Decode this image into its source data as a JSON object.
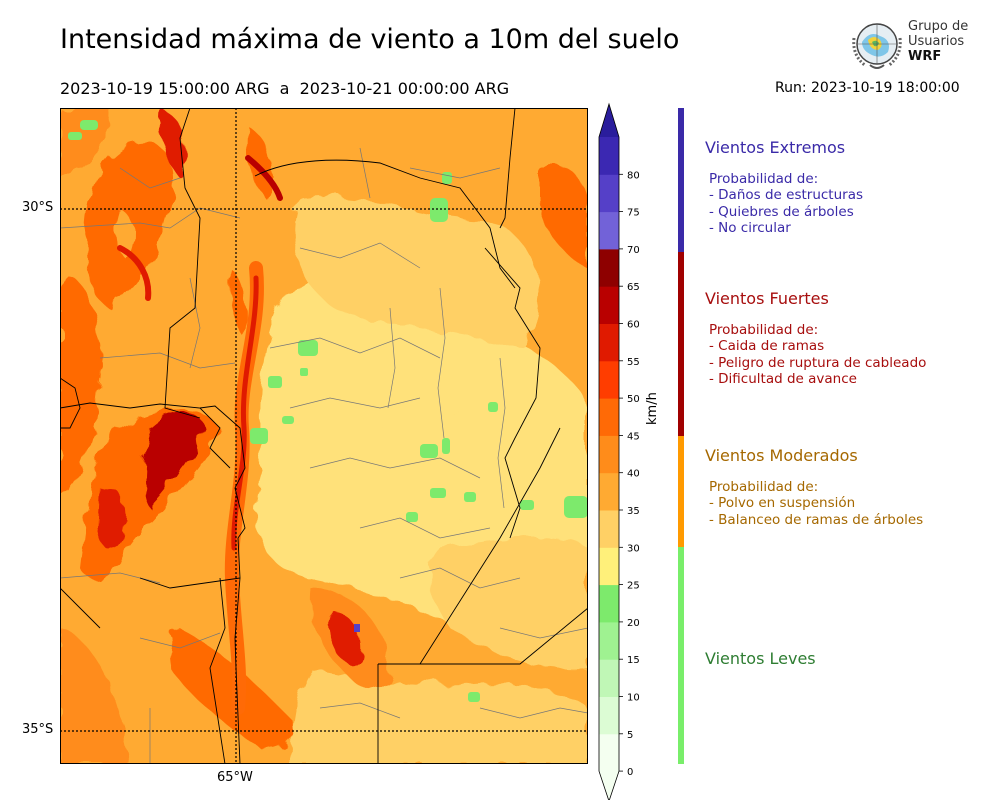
{
  "title": "Intensidad máxima de viento a 10m del suelo",
  "subtitle": "2023-10-19 15:00:00 ARG  a  2023-10-21 00:00:00 ARG",
  "run": "Run: 2023-10-19 18:00:00",
  "logo": {
    "line1": "Grupo de",
    "line2": "Usuarios",
    "line3": "WRF"
  },
  "axes": {
    "lat_labels": [
      "30°S",
      "35°S"
    ],
    "lon_labels": [
      "65°W"
    ]
  },
  "colorbar": {
    "unit": "km/h",
    "ticks": [
      "0",
      "5",
      "10",
      "15",
      "20",
      "25",
      "30",
      "35",
      "40",
      "45",
      "50",
      "55",
      "60",
      "65",
      "70",
      "75",
      "80"
    ],
    "colors": [
      "#f4fff0",
      "#dcfcd4",
      "#c0f7b6",
      "#9ff291",
      "#7dea6c",
      "#fff07a",
      "#ffd065",
      "#ffaa32",
      "#ff8c1a",
      "#ff6a06",
      "#ff3d00",
      "#e01a00",
      "#b90000",
      "#8e0000",
      "#7262d8",
      "#5540c8",
      "#3b28b2"
    ],
    "extend_color": "#2a1d9c"
  },
  "categories": [
    {
      "title": "Vientos Extremos",
      "color": "#3a2aa8",
      "strip_color": "#3a2aa8",
      "lines": [
        "Probabilidad de:",
        "- Daños de estructuras",
        "- Quiebres de árboles",
        "- No circular"
      ]
    },
    {
      "title": "Vientos Fuertes",
      "color": "#a70e0e",
      "strip_color": "#a00000",
      "lines": [
        "Probabilidad de:",
        "- Caida de ramas",
        "- Peligro de ruptura de cableado",
        "- Dificultad de avance"
      ]
    },
    {
      "title": "Vientos Moderados",
      "color": "#a56800",
      "strip_color": "#ff9a00",
      "lines": [
        "Probabilidad de:",
        "- Polvo en suspensión",
        "- Balanceo de ramas de árboles"
      ]
    },
    {
      "title": "Vientos Leves",
      "color": "#2e7d32",
      "strip_color": "#79ee6a",
      "lines": []
    }
  ]
}
